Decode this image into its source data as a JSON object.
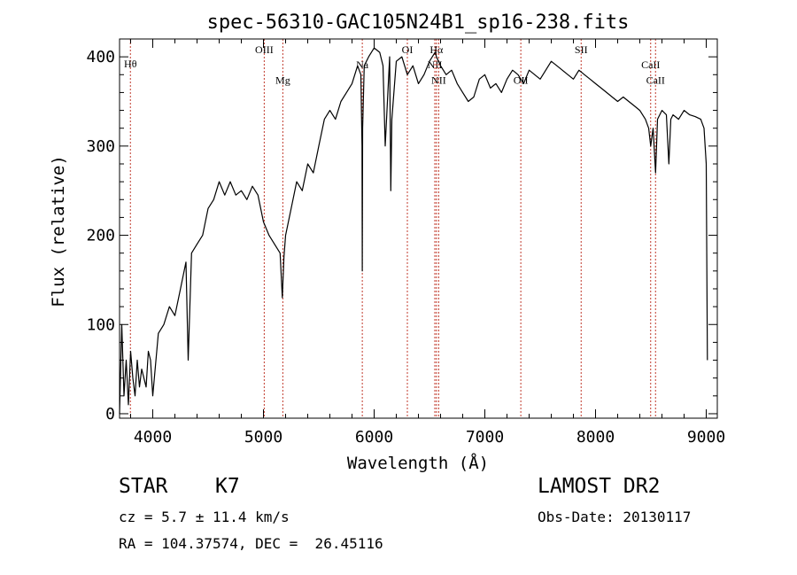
{
  "chart_data": {
    "type": "line",
    "title": "spec-56310-GAC105N24B1_sp16-238.fits",
    "xlabel": "Wavelength (Å)",
    "ylabel": "Flux (relative)",
    "xlim": [
      3700,
      9100
    ],
    "ylim": [
      -5,
      420
    ],
    "x_ticks": [
      4000,
      5000,
      6000,
      7000,
      8000,
      9000
    ],
    "y_ticks": [
      0,
      100,
      200,
      300,
      400
    ],
    "grid": false,
    "line_color": "#000000",
    "marker_color": "#c0392b",
    "series": [
      {
        "x": [
          3700,
          3720,
          3740,
          3760,
          3780,
          3800,
          3820,
          3840,
          3860,
          3880,
          3900,
          3920,
          3940,
          3960,
          3980,
          4000,
          4050,
          4100,
          4150,
          4200,
          4250,
          4300,
          4320,
          4350,
          4400,
          4450,
          4500,
          4550,
          4600,
          4650,
          4700,
          4750,
          4800,
          4850,
          4900,
          4950,
          5000,
          5050,
          5100,
          5150,
          5170,
          5185,
          5200,
          5250,
          5300,
          5350,
          5400,
          5450,
          5500,
          5550,
          5600,
          5650,
          5700,
          5750,
          5800,
          5850,
          5880,
          5890,
          5893,
          5896,
          5910,
          5950,
          6000,
          6050,
          6080,
          6100,
          6140,
          6150,
          6160,
          6200,
          6250,
          6300,
          6350,
          6400,
          6450,
          6500,
          6550,
          6563,
          6600,
          6650,
          6700,
          6750,
          6800,
          6850,
          6900,
          6950,
          7000,
          7050,
          7100,
          7150,
          7200,
          7250,
          7300,
          7350,
          7400,
          7450,
          7500,
          7550,
          7600,
          7650,
          7700,
          7750,
          7800,
          7850,
          7900,
          7950,
          8000,
          8050,
          8100,
          8150,
          8200,
          8250,
          8300,
          8350,
          8400,
          8450,
          8480,
          8498,
          8520,
          8542,
          8560,
          8600,
          8640,
          8662,
          8680,
          8700,
          8750,
          8800,
          8850,
          8900,
          8950,
          8980,
          9000,
          9010
        ],
        "y": [
          0,
          100,
          20,
          60,
          10,
          70,
          40,
          20,
          60,
          30,
          50,
          40,
          30,
          70,
          60,
          20,
          90,
          100,
          120,
          110,
          140,
          170,
          60,
          180,
          190,
          200,
          230,
          240,
          260,
          245,
          260,
          245,
          250,
          240,
          255,
          245,
          215,
          200,
          190,
          180,
          130,
          175,
          200,
          230,
          260,
          250,
          280,
          270,
          300,
          330,
          340,
          330,
          350,
          360,
          370,
          390,
          380,
          300,
          160,
          320,
          390,
          400,
          410,
          405,
          390,
          300,
          400,
          250,
          330,
          395,
          400,
          380,
          390,
          370,
          380,
          395,
          405,
          400,
          390,
          380,
          385,
          370,
          360,
          350,
          355,
          375,
          380,
          365,
          370,
          360,
          375,
          385,
          380,
          370,
          385,
          380,
          375,
          385,
          395,
          390,
          385,
          380,
          375,
          385,
          380,
          375,
          370,
          365,
          360,
          355,
          350,
          355,
          350,
          345,
          340,
          330,
          320,
          300,
          320,
          270,
          330,
          340,
          335,
          280,
          330,
          335,
          330,
          340,
          335,
          333,
          330,
          320,
          280,
          60
        ]
      }
    ],
    "lines": [
      {
        "label": "Hθ",
        "x": 3798,
        "label_y": 388
      },
      {
        "label": "OIII",
        "x": 5007,
        "label_y": 404
      },
      {
        "label": "Mg",
        "x": 5175,
        "label_y": 370
      },
      {
        "label": "Na",
        "x": 5893,
        "label_y": 387
      },
      {
        "label": "OI",
        "x": 6300,
        "label_y": 404
      },
      {
        "label": "NII",
        "x": 6548,
        "label_y": 387
      },
      {
        "label": "Hα",
        "x": 6563,
        "label_y": 404
      },
      {
        "label": "NII",
        "x": 6583,
        "label_y": 370
      },
      {
        "label": "OII",
        "x": 7325,
        "label_y": 370
      },
      {
        "label": "SII",
        "x": 7870,
        "label_y": 404
      },
      {
        "label": "CaII",
        "x": 8498,
        "label_y": 387
      },
      {
        "label": "CaII",
        "x": 8542,
        "label_y": 370
      }
    ]
  },
  "info": {
    "object_type": "STAR",
    "subclass": "K7",
    "survey": "LAMOST DR2",
    "cz": "cz = 5.7 ± 11.4 km/s",
    "obs_date": "Obs-Date: 20130117",
    "ra_dec": "RA = 104.37574, DEC =  26.45116"
  }
}
